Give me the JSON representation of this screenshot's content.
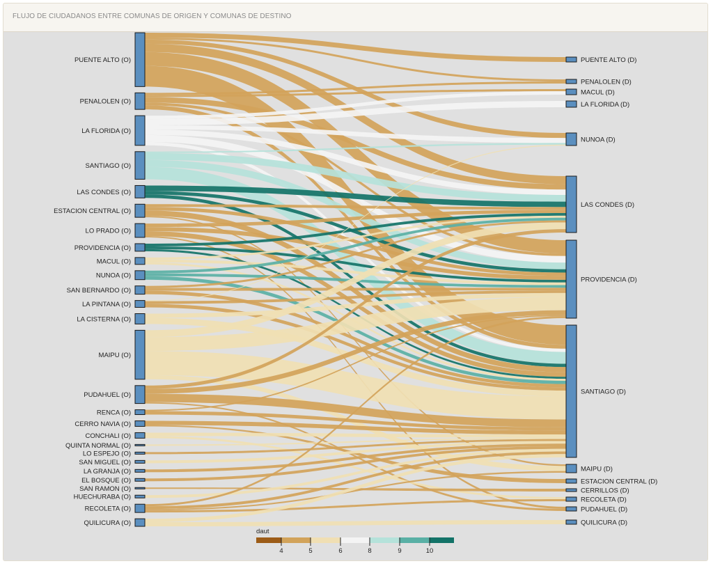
{
  "header": {
    "title": "FLUJO DE CIUDADANOS ENTRE COMUNAS DE ORIGEN Y COMUNAS DE DESTINO"
  },
  "colors": {
    "node": "#5b8fbf",
    "c3": "#9c5c17",
    "c4": "#d2a35a",
    "c5": "#f0dfb3",
    "c6": "#f4f4f4",
    "c8": "#b5e2da",
    "c9": "#5ab0a5",
    "c10": "#137368"
  },
  "sources": [
    "PUENTE ALTO (O)",
    "PENALOLEN (O)",
    "LA FLORIDA (O)",
    "SANTIAGO (O)",
    "LAS CONDES (O)",
    "ESTACION CENTRAL (O)",
    "LO PRADO (O)",
    "PROVIDENCIA (O)",
    "MACUL (O)",
    "NUNOA (O)",
    "SAN BERNARDO (O)",
    "LA PINTANA (O)",
    "LA CISTERNA (O)",
    "MAIPU (O)",
    "PUDAHUEL (O)",
    "RENCA (O)",
    "CERRO NAVIA (O)",
    "CONCHALI (O)",
    "QUINTA NORMAL (O)",
    "LO ESPEJO (O)",
    "SAN MIGUEL (O)",
    "LA GRANJA (O)",
    "EL BOSQUE (O)",
    "SAN RAMON (O)",
    "HUECHURABA (O)",
    "RECOLETA (O)",
    "QUILICURA (O)"
  ],
  "targets": [
    "PUENTE ALTO (D)",
    "PENALOLEN (D)",
    "MACUL (D)",
    "LA FLORIDA (D)",
    "NUNOA (D)",
    "LAS CONDES (D)",
    "PROVIDENCIA (D)",
    "SANTIAGO (D)",
    "MAIPU (D)",
    "ESTACION CENTRAL (D)",
    "CERRILLOS (D)",
    "RECOLETA (D)",
    "PUDAHUEL (D)",
    "QUILICURA (D)"
  ],
  "links": [
    [
      0,
      0,
      7,
      "c4"
    ],
    [
      0,
      1,
      3,
      "c4"
    ],
    [
      0,
      4,
      6,
      "c4"
    ],
    [
      0,
      5,
      12,
      "c4"
    ],
    [
      0,
      6,
      20,
      "c4"
    ],
    [
      0,
      7,
      30,
      "c4"
    ],
    [
      1,
      1,
      3,
      "c4"
    ],
    [
      1,
      2,
      3,
      "c4"
    ],
    [
      1,
      5,
      8,
      "c4"
    ],
    [
      1,
      6,
      4,
      "c4"
    ],
    [
      1,
      7,
      6,
      "c4"
    ],
    [
      2,
      3,
      9,
      "c6"
    ],
    [
      2,
      2,
      5,
      "c6"
    ],
    [
      2,
      4,
      6,
      "c6"
    ],
    [
      2,
      5,
      8,
      "c6"
    ],
    [
      2,
      6,
      10,
      "c6"
    ],
    [
      2,
      7,
      5,
      "c6"
    ],
    [
      3,
      4,
      2,
      "c8"
    ],
    [
      3,
      5,
      10,
      "c8"
    ],
    [
      3,
      6,
      10,
      "c8"
    ],
    [
      3,
      7,
      18,
      "c8"
    ],
    [
      4,
      5,
      8,
      "c10"
    ],
    [
      4,
      6,
      5,
      "c10"
    ],
    [
      4,
      7,
      5,
      "c10"
    ],
    [
      5,
      5,
      4,
      "c4"
    ],
    [
      5,
      6,
      5,
      "c4"
    ],
    [
      5,
      7,
      8,
      "c4"
    ],
    [
      5,
      8,
      2,
      "c4"
    ],
    [
      6,
      5,
      5,
      "c4"
    ],
    [
      6,
      6,
      6,
      "c4"
    ],
    [
      6,
      7,
      7,
      "c4"
    ],
    [
      6,
      12,
      2,
      "c4"
    ],
    [
      7,
      5,
      4,
      "c10"
    ],
    [
      7,
      6,
      4,
      "c10"
    ],
    [
      7,
      7,
      3,
      "c10"
    ],
    [
      8,
      5,
      3,
      "c5"
    ],
    [
      8,
      6,
      4,
      "c5"
    ],
    [
      8,
      7,
      3,
      "c5"
    ],
    [
      9,
      5,
      4,
      "c9"
    ],
    [
      9,
      6,
      4,
      "c9"
    ],
    [
      9,
      7,
      5,
      "c9"
    ],
    [
      10,
      5,
      3,
      "c4"
    ],
    [
      10,
      6,
      4,
      "c4"
    ],
    [
      10,
      7,
      5,
      "c4"
    ],
    [
      11,
      4,
      1,
      "c5"
    ],
    [
      11,
      6,
      4,
      "c4"
    ],
    [
      11,
      7,
      5,
      "c4"
    ],
    [
      12,
      6,
      6,
      "c5"
    ],
    [
      12,
      7,
      9,
      "c5"
    ],
    [
      13,
      5,
      10,
      "c5"
    ],
    [
      13,
      6,
      20,
      "c5"
    ],
    [
      13,
      7,
      35,
      "c5"
    ],
    [
      13,
      8,
      6,
      "c5"
    ],
    [
      14,
      5,
      5,
      "c4"
    ],
    [
      14,
      6,
      7,
      "c4"
    ],
    [
      14,
      7,
      12,
      "c4"
    ],
    [
      14,
      12,
      2,
      "c4"
    ],
    [
      15,
      6,
      2,
      "c4"
    ],
    [
      15,
      7,
      5,
      "c4"
    ],
    [
      16,
      7,
      6,
      "c4"
    ],
    [
      16,
      9,
      2,
      "c4"
    ],
    [
      17,
      7,
      5,
      "c5"
    ],
    [
      17,
      11,
      3,
      "c5"
    ],
    [
      18,
      7,
      2,
      "c5"
    ],
    [
      19,
      7,
      3,
      "c4"
    ],
    [
      20,
      7,
      4,
      "c5"
    ],
    [
      21,
      7,
      4,
      "c4"
    ],
    [
      22,
      7,
      4,
      "c4"
    ],
    [
      23,
      10,
      2,
      "c4"
    ],
    [
      24,
      7,
      4,
      "c5"
    ],
    [
      25,
      6,
      3,
      "c4"
    ],
    [
      25,
      7,
      4,
      "c4"
    ],
    [
      25,
      8,
      2,
      "c4"
    ],
    [
      25,
      11,
      3,
      "c4"
    ],
    [
      26,
      7,
      5,
      "c5"
    ],
    [
      26,
      13,
      6,
      "c5"
    ]
  ],
  "legend": {
    "title": "daut",
    "ticks": [
      "4",
      "5",
      "6",
      "8",
      "9",
      "10"
    ],
    "segments": [
      "c3",
      "c4",
      "c5",
      "c6",
      "c8",
      "c9",
      "c10"
    ]
  }
}
